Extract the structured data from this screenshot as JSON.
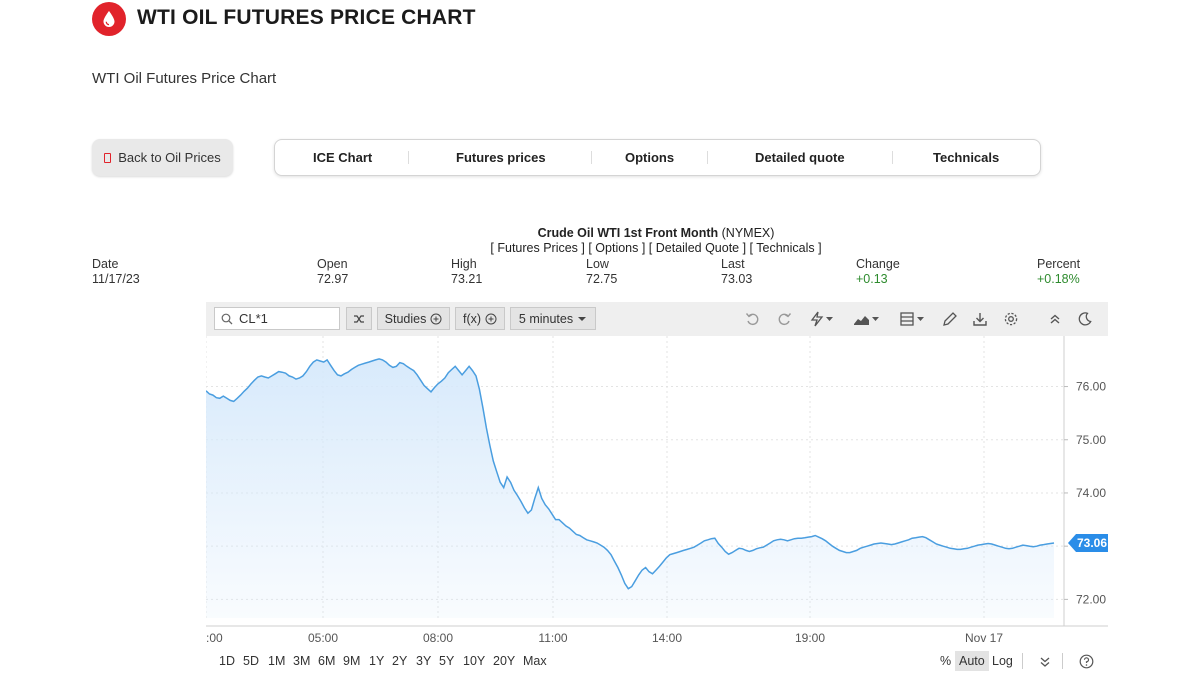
{
  "header": {
    "title": "WTI OIL FUTURES PRICE CHART",
    "subtitle": "WTI Oil Futures Price Chart",
    "logo_icon": "oil-drop-icon",
    "brand_color": "#e1232b"
  },
  "nav": {
    "back_label": "Back to Oil Prices",
    "tabs": [
      "ICE Chart",
      "Futures prices",
      "Options",
      "Detailed quote",
      "Technicals"
    ]
  },
  "quote": {
    "instrument": "Crude Oil WTI 1st Front Month",
    "exchange": "(NYMEX)",
    "links": "[ Futures Prices ] [ Options ] [ Detailed Quote ] [ Technicals ]",
    "labels": {
      "date": "Date",
      "open": "Open",
      "high": "High",
      "low": "Low",
      "last": "Last",
      "change": "Change",
      "percent": "Percent"
    },
    "values": {
      "date": "11/17/23",
      "open": "72.97",
      "high": "73.21",
      "low": "72.75",
      "last": "73.03",
      "change": "+0.13",
      "percent": "+0.18%"
    }
  },
  "toolbar": {
    "symbol": "CL*1",
    "studies_label": "Studies",
    "fx_label": "f(x)",
    "interval_label": "5 minutes",
    "icons": [
      "search-icon",
      "compare-icon",
      "plus-circle-icon",
      "undo-icon",
      "redo-icon",
      "lightning-icon",
      "area-chart-icon",
      "layout-icon",
      "pencil-icon",
      "download-icon",
      "settings-icon",
      "collapse-icon",
      "theme-icon"
    ]
  },
  "ranges": [
    "1D",
    "5D",
    "1M",
    "3M",
    "6M",
    "9M",
    "1Y",
    "2Y",
    "3Y",
    "5Y",
    "10Y",
    "20Y",
    "Max"
  ],
  "scale_options": {
    "percent": "%",
    "auto": "Auto",
    "log": "Log"
  },
  "chart_data": {
    "type": "area",
    "title": "",
    "xlabel": "",
    "ylabel": "",
    "ylim": [
      71.65,
      76.95
    ],
    "y_ticks": [
      "76.00",
      "75.00",
      "74.00",
      "73.00",
      "72.00"
    ],
    "x_tick_labels": [
      ":00",
      "05:00",
      "08:00",
      "11:00",
      "14:00",
      "19:00",
      "Nov 17"
    ],
    "last_price_label": "73.06",
    "line_color": "#4a9ee0",
    "fill_color": "#d6e9fb",
    "label_color": "#2a8de8",
    "grid": true,
    "series": [
      {
        "values": [
          75.92,
          75.86,
          75.84,
          75.79,
          75.78,
          75.82,
          75.78,
          75.74,
          75.72,
          75.78,
          75.84,
          75.91,
          75.97,
          76.05,
          76.12,
          76.18,
          76.2,
          76.18,
          76.16,
          76.2,
          76.24,
          76.28,
          76.27,
          76.25,
          76.2,
          76.18,
          76.14,
          76.16,
          76.2,
          76.28,
          76.38,
          76.46,
          76.5,
          76.48,
          76.46,
          76.5,
          76.4,
          76.3,
          76.22,
          76.2,
          76.24,
          76.27,
          76.32,
          76.36,
          76.4,
          76.42,
          76.44,
          76.46,
          76.48,
          76.5,
          76.52,
          76.5,
          76.46,
          76.4,
          76.36,
          76.38,
          76.45,
          76.43,
          76.38,
          76.34,
          76.3,
          76.22,
          76.12,
          76.02,
          75.96,
          75.9,
          75.98,
          76.05,
          76.1,
          76.16,
          76.26,
          76.32,
          76.38,
          76.3,
          76.22,
          76.3,
          76.38,
          76.3,
          76.2,
          75.95,
          75.6,
          75.22,
          74.9,
          74.6,
          74.4,
          74.2,
          74.1,
          74.3,
          74.2,
          74.05,
          73.95,
          73.84,
          73.72,
          73.62,
          73.68,
          73.9,
          74.1,
          73.9,
          73.78,
          73.7,
          73.6,
          73.5,
          73.5,
          73.44,
          73.38,
          73.34,
          73.28,
          73.22,
          73.2,
          73.16,
          73.12,
          73.1,
          73.08,
          73.06,
          73.02,
          72.98,
          72.92,
          72.84,
          72.72,
          72.6,
          72.46,
          72.3,
          72.2,
          72.24,
          72.35,
          72.46,
          72.55,
          72.6,
          72.52,
          72.48,
          72.55,
          72.62,
          72.7,
          72.78,
          72.84,
          72.86,
          72.88,
          72.9,
          72.92,
          72.94,
          72.96,
          72.98,
          73.02,
          73.06,
          73.1,
          73.12,
          73.14,
          73.15,
          73.05,
          72.98,
          72.9,
          72.85,
          72.88,
          72.92,
          72.96,
          72.95,
          72.92,
          72.9,
          72.92,
          72.95,
          72.97,
          72.98,
          73.02,
          73.06,
          73.1,
          73.12,
          73.13,
          73.12,
          73.1,
          73.12,
          73.14,
          73.15,
          73.15,
          73.16,
          73.17,
          73.18,
          73.2,
          73.17,
          73.14,
          73.1,
          73.05,
          73.0,
          72.96,
          72.92,
          72.9,
          72.88,
          72.88,
          72.9,
          72.92,
          72.96,
          72.98,
          73.0,
          73.02,
          73.04,
          73.05,
          73.06,
          73.05,
          73.04,
          73.03,
          73.04,
          73.06,
          73.08,
          73.1,
          73.12,
          73.15,
          73.16,
          73.17,
          73.18,
          73.16,
          73.12,
          73.08,
          73.04,
          73.02,
          73.0,
          72.98,
          72.96,
          72.95,
          72.94,
          72.94,
          72.95,
          72.96,
          72.98,
          73.0,
          73.02,
          73.03,
          73.04,
          73.05,
          73.04,
          73.02,
          73.0,
          72.98,
          72.96,
          72.95,
          72.96,
          72.98,
          73.0,
          73.02,
          73.01,
          73.0,
          72.99,
          73.0,
          73.02,
          73.03,
          73.04,
          73.05,
          73.06
        ]
      }
    ]
  }
}
